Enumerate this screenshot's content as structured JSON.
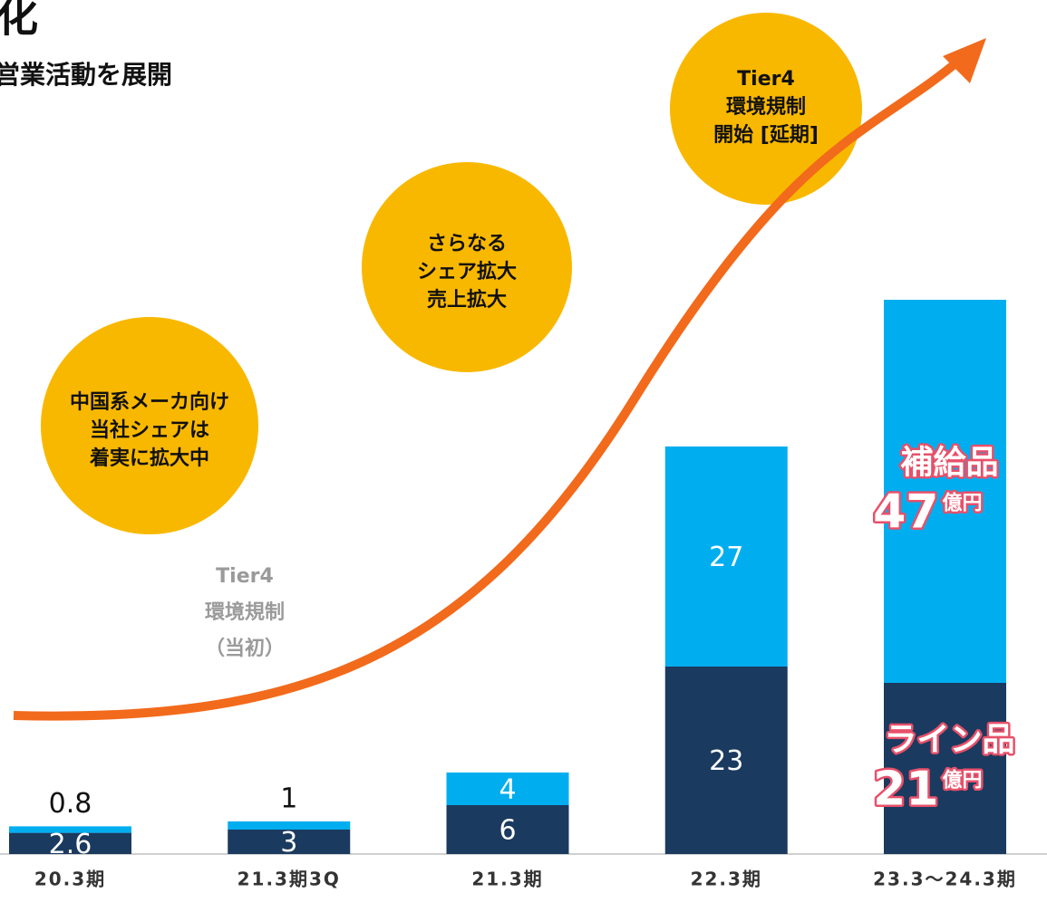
{
  "chart_data": {
    "type": "stacked_bar",
    "title": "化",
    "subtitle": "営業活動を展開",
    "categories": [
      "20.3期",
      "21.3期3Q",
      "21.3期",
      "22.3期",
      "23.3～24.3期"
    ],
    "series": [
      {
        "name": "ライン品",
        "color": "#1b3a5f",
        "values": [
          2.6,
          3,
          6,
          23,
          21
        ]
      },
      {
        "name": "補給品",
        "color": "#00aeef",
        "values": [
          0.8,
          1,
          4,
          27,
          47
        ]
      }
    ],
    "unit": "億円",
    "ylim": [
      0,
      70
    ],
    "annotations": [
      {
        "lines": [
          "中国系メーカ向け",
          "当社シェアは",
          "着実に拡大中"
        ]
      },
      {
        "lines": [
          "さらなる",
          "シェア拡大",
          "売上拡大"
        ]
      },
      {
        "lines": [
          "Tier4",
          "環境規制",
          "開始 [延期]"
        ]
      },
      {
        "lines": [
          "Tier4",
          "環境規制",
          "（当初）"
        ]
      }
    ]
  }
}
